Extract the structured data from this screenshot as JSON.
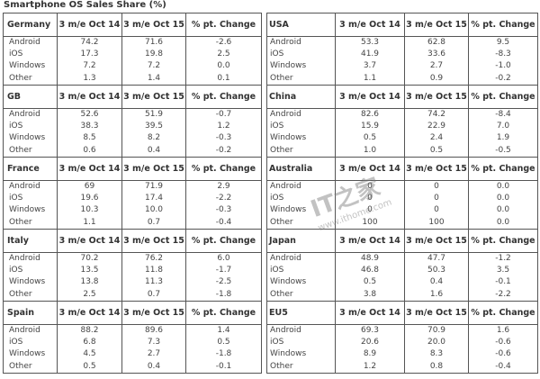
{
  "title": "Smartphone OS Sales Share (%)",
  "watermark": {
    "logo": "IT之家",
    "url": "www.ithome.com"
  },
  "columns": [
    "3 m/e Oct 14",
    "3 m/e Oct 15",
    "% pt. Change"
  ],
  "left": [
    {
      "region": "Germany",
      "rows": [
        [
          "Android",
          "74.2",
          "71.6",
          "-2.6"
        ],
        [
          "iOS",
          "17.3",
          "19.8",
          "2.5"
        ],
        [
          "Windows",
          "7.2",
          "7.2",
          "0.0"
        ],
        [
          "Other",
          "1.3",
          "1.4",
          "0.1"
        ]
      ]
    },
    {
      "region": "GB",
      "rows": [
        [
          "Android",
          "52.6",
          "51.9",
          "-0.7"
        ],
        [
          "iOS",
          "38.3",
          "39.5",
          "1.2"
        ],
        [
          "Windows",
          "8.5",
          "8.2",
          "-0.3"
        ],
        [
          "Other",
          "0.6",
          "0.4",
          "-0.2"
        ]
      ]
    },
    {
      "region": "France",
      "rows": [
        [
          "Android",
          "69",
          "71.9",
          "2.9"
        ],
        [
          "iOS",
          "19.6",
          "17.4",
          "-2.2"
        ],
        [
          "Windows",
          "10.3",
          "10.0",
          "-0.3"
        ],
        [
          "Other",
          "1.1",
          "0.7",
          "-0.4"
        ]
      ]
    },
    {
      "region": "Italy",
      "rows": [
        [
          "Android",
          "70.2",
          "76.2",
          "6.0"
        ],
        [
          "iOS",
          "13.5",
          "11.8",
          "-1.7"
        ],
        [
          "Windows",
          "13.8",
          "11.3",
          "-2.5"
        ],
        [
          "Other",
          "2.5",
          "0.7",
          "-1.8"
        ]
      ]
    },
    {
      "region": "Spain",
      "rows": [
        [
          "Android",
          "88.2",
          "89.6",
          "1.4"
        ],
        [
          "iOS",
          "6.8",
          "7.3",
          "0.5"
        ],
        [
          "Windows",
          "4.5",
          "2.7",
          "-1.8"
        ],
        [
          "Other",
          "0.5",
          "0.4",
          "-0.1"
        ]
      ]
    }
  ],
  "right": [
    {
      "region": "USA",
      "rows": [
        [
          "Android",
          "53.3",
          "62.8",
          "9.5"
        ],
        [
          "iOS",
          "41.9",
          "33.6",
          "-8.3"
        ],
        [
          "Windows",
          "3.7",
          "2.7",
          "-1.0"
        ],
        [
          "Other",
          "1.1",
          "0.9",
          "-0.2"
        ]
      ]
    },
    {
      "region": "China",
      "rows": [
        [
          "Android",
          "82.6",
          "74.2",
          "-8.4"
        ],
        [
          "iOS",
          "15.9",
          "22.9",
          "7.0"
        ],
        [
          "Windows",
          "0.5",
          "2.4",
          "1.9"
        ],
        [
          "Other",
          "1.0",
          "0.5",
          "-0.5"
        ]
      ]
    },
    {
      "region": "Australia",
      "rows": [
        [
          "Android",
          "0",
          "0",
          "0.0"
        ],
        [
          "iOS",
          "0",
          "0",
          "0.0"
        ],
        [
          "Windows",
          "0",
          "0",
          "0.0"
        ],
        [
          "Other",
          "100",
          "100",
          "0.0"
        ]
      ]
    },
    {
      "region": "Japan",
      "rows": [
        [
          "Android",
          "48.9",
          "47.7",
          "-1.2"
        ],
        [
          "iOS",
          "46.8",
          "50.3",
          "3.5"
        ],
        [
          "Windows",
          "0.5",
          "0.4",
          "-0.1"
        ],
        [
          "Other",
          "3.8",
          "1.6",
          "-2.2"
        ]
      ]
    },
    {
      "region": "EU5",
      "rows": [
        [
          "Android",
          "69.3",
          "70.9",
          "1.6"
        ],
        [
          "iOS",
          "20.6",
          "20.0",
          "-0.6"
        ],
        [
          "Windows",
          "8.9",
          "8.3",
          "-0.6"
        ],
        [
          "Other",
          "1.2",
          "0.8",
          "-0.4"
        ]
      ]
    }
  ]
}
